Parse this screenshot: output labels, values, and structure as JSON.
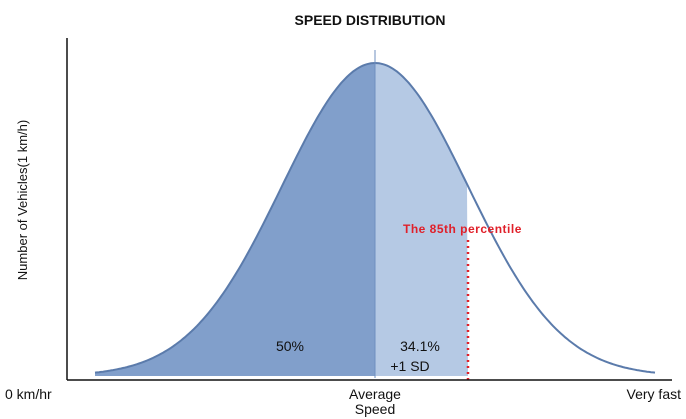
{
  "title": "SPEED DISTRIBUTION",
  "y_axis_label": "Number of Vehicles(1 km/h)",
  "x_labels": {
    "start": "0 km/hr",
    "middle": [
      "Average",
      "Speed"
    ],
    "end": "Very fast"
  },
  "regions": {
    "left": "50%",
    "right": [
      "34.1%",
      "+1 SD"
    ]
  },
  "annotation": "The 85th percentile"
}
